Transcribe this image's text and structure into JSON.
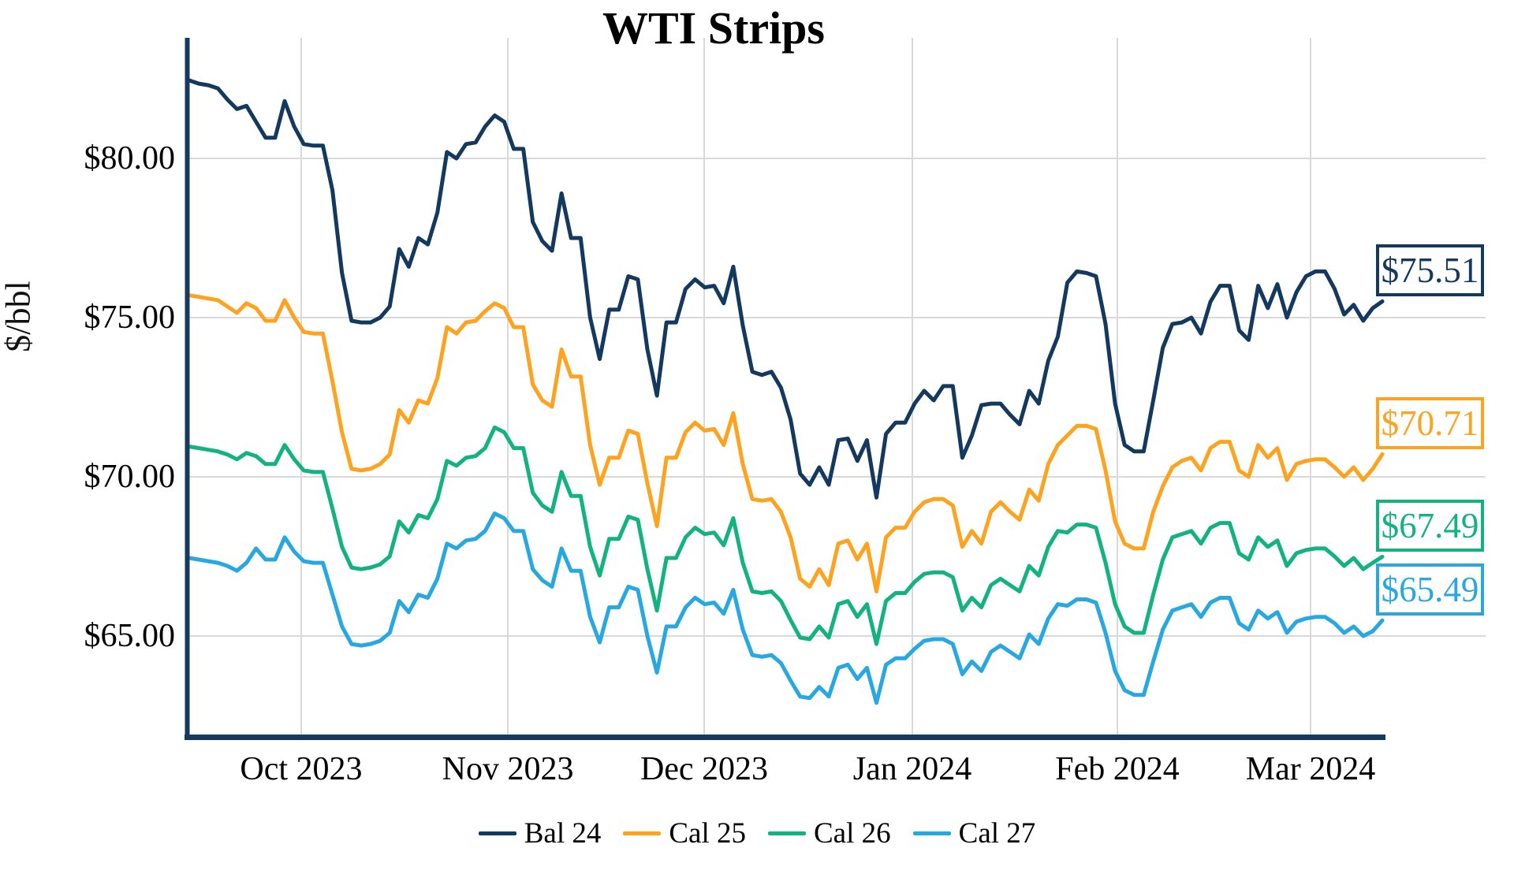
{
  "chart_data": {
    "type": "line",
    "title": "WTI Strips",
    "ylabel": "$/bbl",
    "xlabel": "",
    "grid": true,
    "legend_position": "bottom-center",
    "ylim": [
      61.9,
      83.8
    ],
    "y_ticks": [
      {
        "label": "$80.00",
        "value": 80
      },
      {
        "label": "$75.00",
        "value": 75
      },
      {
        "label": "$70.00",
        "value": 70
      },
      {
        "label": "$65.00",
        "value": 65
      }
    ],
    "x_ticks": [
      {
        "label": "Oct 2023",
        "day_index": 11.73
      },
      {
        "label": "Nov 2023",
        "day_index": 33.38
      },
      {
        "label": "Dec 2023",
        "day_index": 53.95
      },
      {
        "label": "Jan 2024",
        "day_index": 75.76
      },
      {
        "label": "Feb 2024",
        "day_index": 97.24
      },
      {
        "label": "Mar 2024",
        "day_index": 117.48
      }
    ],
    "x_range_days": [
      0,
      125
    ],
    "series": [
      {
        "name": "Bal 24",
        "color": "#14395E",
        "end_label": "$75.51",
        "end_value": 75.51,
        "values": [
          82.45,
          82.35,
          82.3,
          82.2,
          81.85,
          81.55,
          81.65,
          81.15,
          80.65,
          80.65,
          81.8,
          81.0,
          80.45,
          80.4,
          80.4,
          79.0,
          76.4,
          74.9,
          74.85,
          74.85,
          75.0,
          75.35,
          77.15,
          76.6,
          77.5,
          77.3,
          78.3,
          80.2,
          80.0,
          80.45,
          80.5,
          81.0,
          81.35,
          81.15,
          80.3,
          80.3,
          78.0,
          77.4,
          77.1,
          78.9,
          77.5,
          77.5,
          75.0,
          73.7,
          75.25,
          75.25,
          76.3,
          76.2,
          74.0,
          72.55,
          74.85,
          74.85,
          75.9,
          76.2,
          75.95,
          76.0,
          75.45,
          76.6,
          74.75,
          73.3,
          73.2,
          73.3,
          72.8,
          71.8,
          70.1,
          69.75,
          70.3,
          69.75,
          71.15,
          71.2,
          70.5,
          71.15,
          69.35,
          71.35,
          71.7,
          71.7,
          72.3,
          72.7,
          72.4,
          72.85,
          72.85,
          70.6,
          71.3,
          72.25,
          72.3,
          72.3,
          71.95,
          71.65,
          72.7,
          72.3,
          73.65,
          74.4,
          76.1,
          76.45,
          76.4,
          76.3,
          74.8,
          72.3,
          71.0,
          70.8,
          70.8,
          72.4,
          74.05,
          74.8,
          74.85,
          75.0,
          74.5,
          75.5,
          76.0,
          76.0,
          74.6,
          74.3,
          76.0,
          75.3,
          76.05,
          75.0,
          75.8,
          76.3,
          76.45,
          76.45,
          75.9,
          75.1,
          75.4,
          74.9,
          75.3,
          75.51
        ]
      },
      {
        "name": "Cal 25",
        "color": "#FEA320",
        "end_label": "$70.71",
        "end_value": 70.71,
        "values": [
          75.7,
          75.65,
          75.6,
          75.55,
          75.35,
          75.15,
          75.45,
          75.3,
          74.9,
          74.9,
          75.55,
          75.0,
          74.55,
          74.5,
          74.5,
          73.0,
          71.4,
          70.25,
          70.2,
          70.25,
          70.4,
          70.7,
          72.1,
          71.7,
          72.4,
          72.3,
          73.1,
          74.7,
          74.5,
          74.85,
          74.9,
          75.2,
          75.45,
          75.3,
          74.7,
          74.7,
          72.9,
          72.4,
          72.2,
          74.0,
          73.15,
          73.15,
          71.0,
          69.75,
          70.6,
          70.6,
          71.45,
          71.35,
          69.8,
          68.45,
          70.6,
          70.6,
          71.4,
          71.7,
          71.45,
          71.5,
          71.0,
          72.0,
          70.4,
          69.3,
          69.25,
          69.3,
          68.9,
          68.1,
          66.8,
          66.55,
          67.1,
          66.6,
          67.9,
          68.0,
          67.4,
          67.9,
          66.4,
          68.1,
          68.4,
          68.4,
          68.9,
          69.2,
          69.3,
          69.3,
          69.1,
          67.8,
          68.3,
          67.9,
          68.9,
          69.2,
          68.9,
          68.65,
          69.6,
          69.25,
          70.4,
          71.0,
          71.3,
          71.6,
          71.6,
          71.5,
          70.2,
          68.6,
          67.9,
          67.75,
          67.75,
          68.9,
          69.7,
          70.3,
          70.5,
          70.6,
          70.2,
          70.9,
          71.1,
          71.1,
          70.2,
          70.0,
          71.0,
          70.6,
          70.9,
          69.9,
          70.4,
          70.5,
          70.55,
          70.55,
          70.3,
          70.0,
          70.3,
          69.9,
          70.25,
          70.71
        ]
      },
      {
        "name": "Cal 26",
        "color": "#12B281",
        "end_label": "$67.49",
        "end_value": 67.49,
        "values": [
          70.95,
          70.9,
          70.85,
          70.8,
          70.7,
          70.55,
          70.75,
          70.65,
          70.4,
          70.4,
          71.0,
          70.55,
          70.2,
          70.15,
          70.15,
          69.0,
          67.8,
          67.15,
          67.1,
          67.15,
          67.25,
          67.5,
          68.6,
          68.25,
          68.8,
          68.7,
          69.3,
          70.5,
          70.35,
          70.6,
          70.65,
          70.9,
          71.55,
          71.4,
          70.9,
          70.9,
          69.5,
          69.1,
          68.9,
          70.15,
          69.4,
          69.4,
          67.8,
          66.9,
          68.05,
          68.05,
          68.75,
          68.65,
          67.1,
          65.8,
          67.45,
          67.45,
          68.1,
          68.4,
          68.2,
          68.25,
          67.85,
          68.7,
          67.3,
          66.4,
          66.35,
          66.4,
          66.1,
          65.5,
          64.95,
          64.9,
          65.3,
          64.95,
          66.0,
          66.1,
          65.6,
          66.0,
          64.75,
          66.1,
          66.35,
          66.35,
          66.7,
          66.95,
          67.0,
          67.0,
          66.85,
          65.8,
          66.2,
          65.9,
          66.6,
          66.8,
          66.6,
          66.4,
          67.2,
          66.9,
          67.8,
          68.3,
          68.25,
          68.5,
          68.5,
          68.4,
          67.3,
          66.0,
          65.3,
          65.1,
          65.1,
          66.3,
          67.4,
          68.1,
          68.2,
          68.3,
          67.9,
          68.4,
          68.55,
          68.55,
          67.6,
          67.4,
          68.1,
          67.8,
          68.0,
          67.2,
          67.6,
          67.7,
          67.75,
          67.75,
          67.5,
          67.2,
          67.45,
          67.1,
          67.3,
          67.49
        ]
      },
      {
        "name": "Cal 27",
        "color": "#27A8E0",
        "end_label": "$65.49",
        "end_value": 65.49,
        "values": [
          67.45,
          67.4,
          67.35,
          67.3,
          67.2,
          67.05,
          67.3,
          67.75,
          67.4,
          67.4,
          68.1,
          67.65,
          67.35,
          67.3,
          67.3,
          66.3,
          65.3,
          64.75,
          64.7,
          64.75,
          64.85,
          65.1,
          66.1,
          65.75,
          66.3,
          66.2,
          66.8,
          67.9,
          67.75,
          68.0,
          68.05,
          68.3,
          68.85,
          68.7,
          68.3,
          68.3,
          67.1,
          66.75,
          66.55,
          67.75,
          67.05,
          67.05,
          65.6,
          64.8,
          65.9,
          65.9,
          66.55,
          66.45,
          65.0,
          63.85,
          65.3,
          65.3,
          65.9,
          66.2,
          66.0,
          66.05,
          65.7,
          66.45,
          65.2,
          64.4,
          64.35,
          64.4,
          64.15,
          63.6,
          63.1,
          63.05,
          63.4,
          63.1,
          64.0,
          64.1,
          63.65,
          64.0,
          62.9,
          64.1,
          64.3,
          64.3,
          64.6,
          64.85,
          64.9,
          64.9,
          64.75,
          63.8,
          64.2,
          63.9,
          64.5,
          64.7,
          64.5,
          64.3,
          65.05,
          64.75,
          65.55,
          66.0,
          65.95,
          66.15,
          66.15,
          66.05,
          65.1,
          63.9,
          63.3,
          63.15,
          63.15,
          64.2,
          65.2,
          65.8,
          65.9,
          66.0,
          65.6,
          66.05,
          66.2,
          66.2,
          65.4,
          65.2,
          65.8,
          65.55,
          65.75,
          65.1,
          65.45,
          65.55,
          65.6,
          65.6,
          65.4,
          65.1,
          65.3,
          65.0,
          65.15,
          65.49
        ]
      }
    ]
  },
  "layout_colors": {
    "spine": "#16395C",
    "gridline": "#D9D9D9",
    "background": "#FFFFFF"
  }
}
